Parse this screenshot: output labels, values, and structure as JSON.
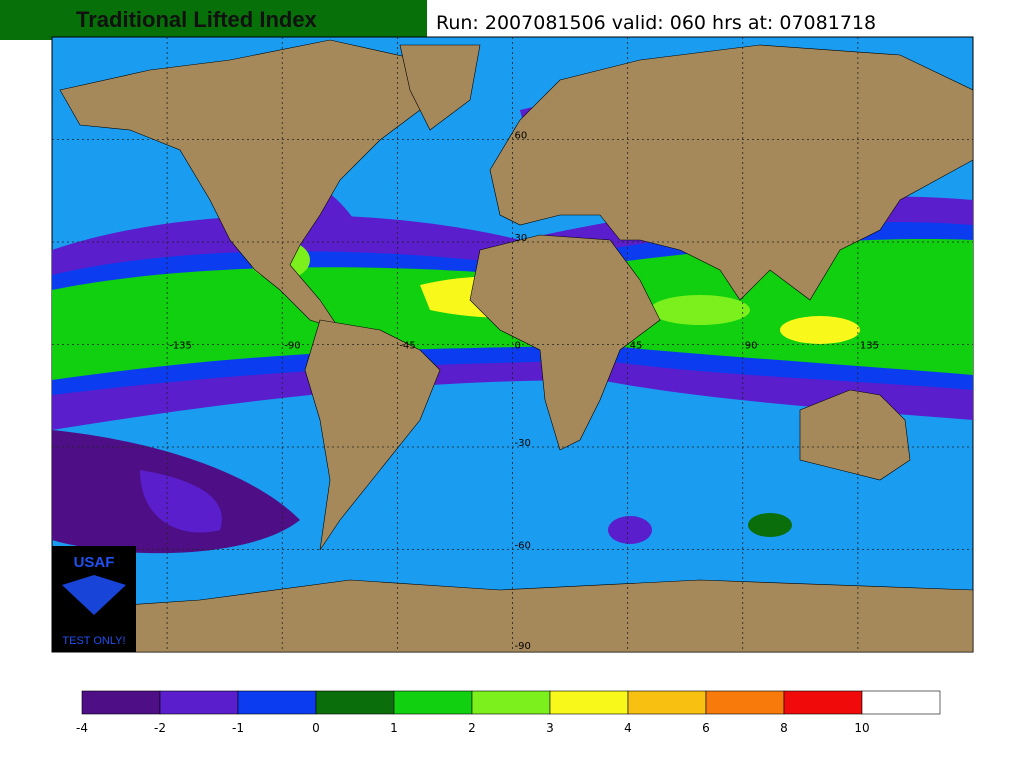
{
  "header": {
    "title": "Traditional Lifted Index",
    "run": "Run: 2007081506 valid: 060 hrs at: 07081718"
  },
  "map": {
    "lon_labels": [
      -135,
      -90,
      -45,
      0,
      45,
      90,
      135
    ],
    "lat_labels": [
      60,
      30,
      -30,
      -60,
      -90
    ],
    "lat_lines": [
      60,
      30,
      0,
      -30,
      -60
    ],
    "lon_lines": [
      -135,
      -90,
      -45,
      0,
      45,
      90,
      135
    ]
  },
  "logo": {
    "name": "USAF",
    "note": "TEST ONLY!"
  },
  "colorbar": {
    "levels": [
      -4,
      -2,
      -1,
      0,
      1,
      2,
      3,
      4,
      6,
      8,
      10
    ],
    "colors": [
      "#4e0f86",
      "#5a1ecc",
      "#0c3cf0",
      "#0a6e0a",
      "#10d010",
      "#7cf01c",
      "#f8f81a",
      "#f8c010",
      "#f87a0a",
      "#f00a0a",
      "#ffffff"
    ]
  }
}
